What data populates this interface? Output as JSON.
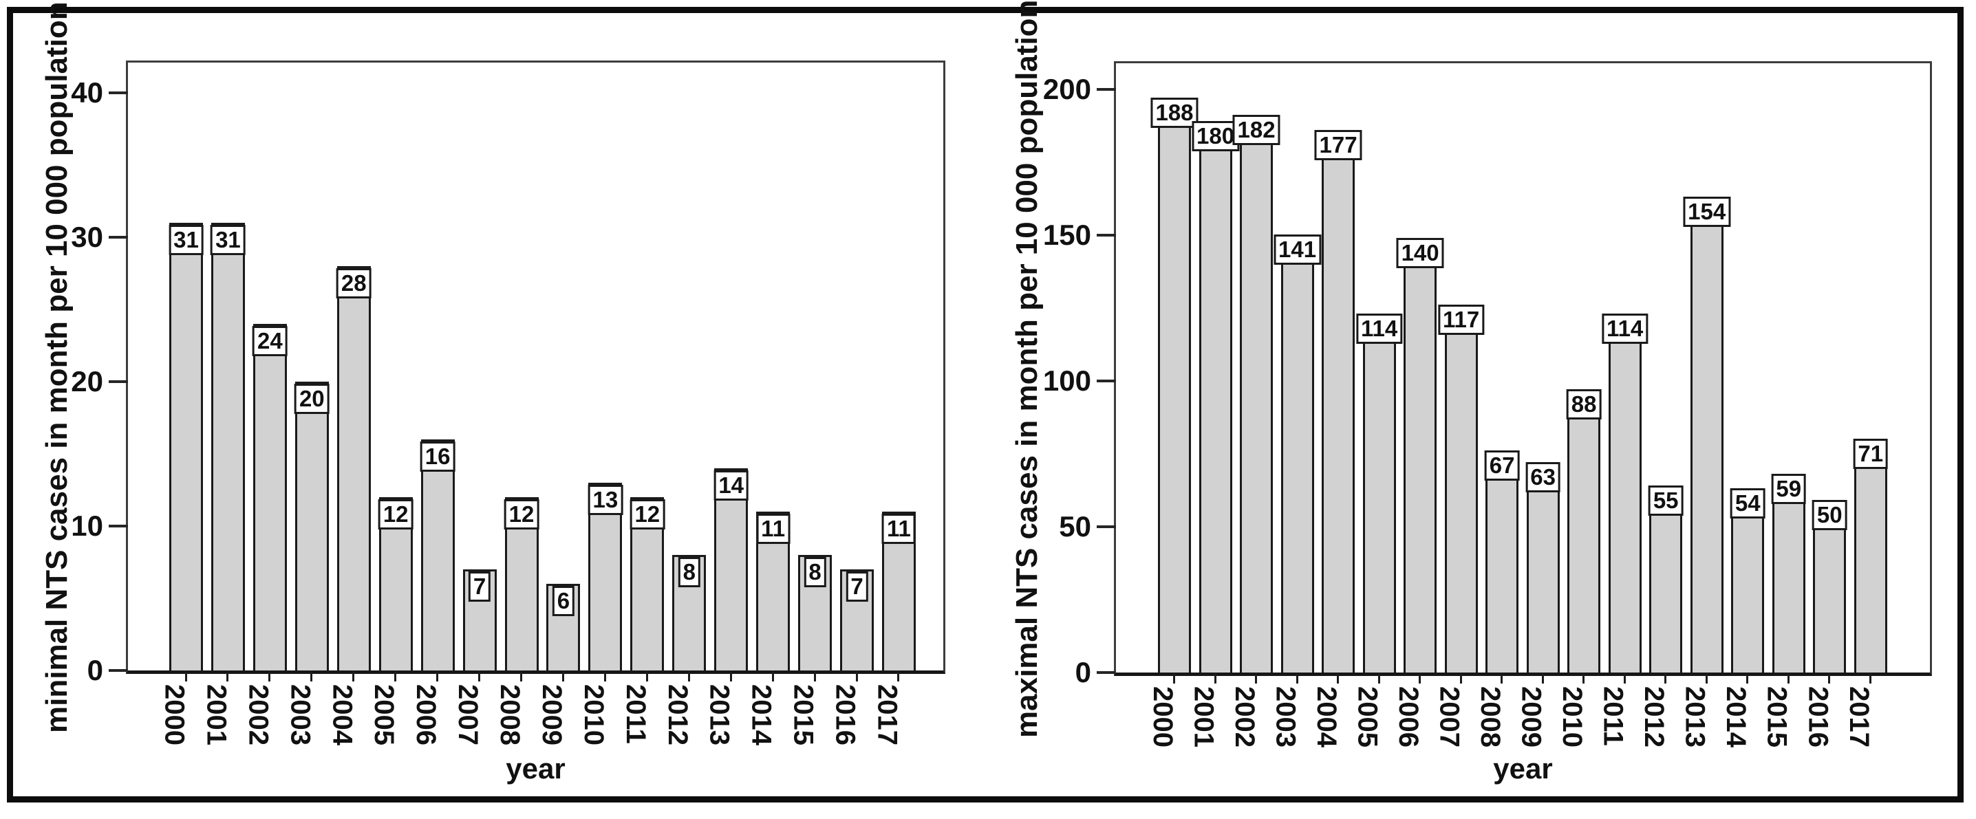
{
  "figure": {
    "background": "#ffffff",
    "frame_color": "#0c0c0c"
  },
  "chart_data": [
    {
      "type": "bar",
      "title": "",
      "ylabel": "minimal NTS cases in month per 10 000 population",
      "xlabel": "year",
      "categories": [
        "2000",
        "2001",
        "2002",
        "2003",
        "2004",
        "2005",
        "2006",
        "2007",
        "2008",
        "2009",
        "2010",
        "2011",
        "2012",
        "2013",
        "2014",
        "2015",
        "2016",
        "2017"
      ],
      "values": [
        31,
        31,
        24,
        20,
        28,
        12,
        16,
        7,
        12,
        6,
        13,
        12,
        8,
        14,
        11,
        8,
        7,
        11
      ],
      "yticks": [
        0,
        10,
        20,
        30,
        40
      ],
      "ylim": [
        0,
        42.1
      ],
      "grid": false,
      "legend": null,
      "value_labels": "boxed",
      "value_label_position": "inside-top",
      "bar_fill": "#d2d2d2",
      "bar_border": "#1a1a1a"
    },
    {
      "type": "bar",
      "title": "",
      "ylabel": "maximal NTS cases in month per 10 000 population",
      "xlabel": "year",
      "categories": [
        "2000",
        "2001",
        "2002",
        "2003",
        "2004",
        "2005",
        "2006",
        "2007",
        "2008",
        "2009",
        "2010",
        "2011",
        "2012",
        "2013",
        "2014",
        "2015",
        "2016",
        "2017"
      ],
      "values": [
        188,
        180,
        182,
        141,
        177,
        114,
        140,
        117,
        67,
        63,
        88,
        114,
        55,
        154,
        54,
        59,
        50,
        71
      ],
      "yticks": [
        0,
        50,
        100,
        150,
        200
      ],
      "ylim": [
        0,
        209
      ],
      "grid": false,
      "legend": null,
      "value_labels": "boxed",
      "value_label_position": "above",
      "bar_fill": "#d2d2d2",
      "bar_border": "#1a1a1a"
    }
  ]
}
